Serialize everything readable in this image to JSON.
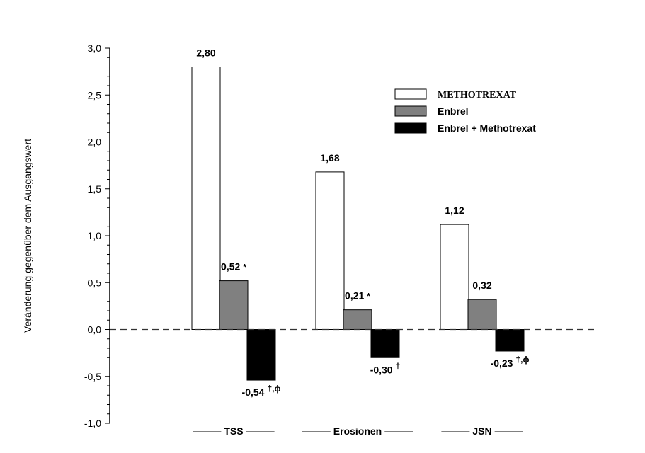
{
  "chart_data": {
    "type": "bar",
    "ylabel": "Veränderung gegenüber dem Ausgangswert",
    "ylim": [
      -1.0,
      3.0
    ],
    "yticks": [
      "-1,0",
      "-0,5",
      "0,0",
      "0,5",
      "1,0",
      "1,5",
      "2,0",
      "2,5",
      "3,0"
    ],
    "categories": [
      "TSS",
      "Erosionen",
      "JSN"
    ],
    "legend_position": "top-right",
    "series": [
      {
        "name": "METHOTREXAT",
        "color": "#ffffff",
        "values": [
          2.8,
          1.68,
          1.12
        ],
        "labels": [
          "2,80",
          "1,68",
          "1,12"
        ],
        "marks": [
          "",
          "",
          ""
        ]
      },
      {
        "name": "Enbrel",
        "color": "#808080",
        "values": [
          0.52,
          0.21,
          0.32
        ],
        "labels": [
          "0,52",
          "0,21",
          "0,32"
        ],
        "marks": [
          "*",
          "*",
          ""
        ]
      },
      {
        "name": "Enbrel + Methotrexat",
        "color": "#000000",
        "values": [
          -0.54,
          -0.3,
          -0.23
        ],
        "labels": [
          "-0,54",
          "-0,30",
          "-0,23"
        ],
        "marks": [
          "†,ϕ",
          "†",
          "†,ϕ"
        ]
      }
    ],
    "zero_line": "dashed"
  }
}
